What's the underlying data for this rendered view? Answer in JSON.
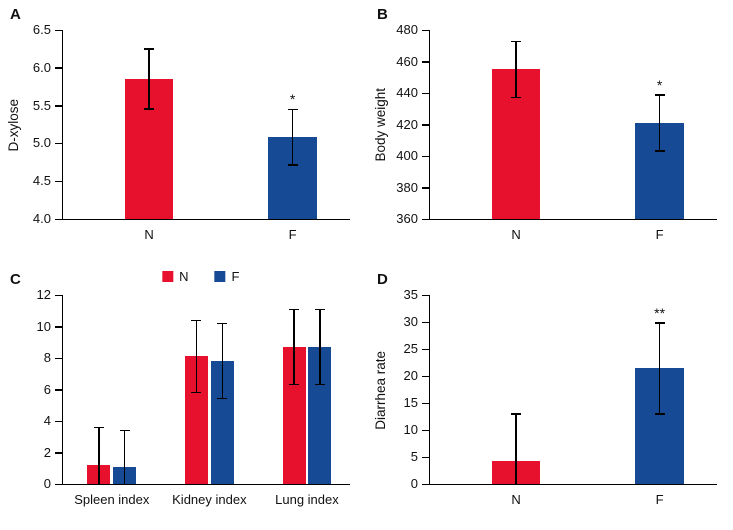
{
  "colors": {
    "red": "#e8112d",
    "blue": "#174a94",
    "axis": "#000000"
  },
  "chart_data": [
    {
      "panel": "A",
      "type": "bar",
      "ylabel": "D-xylose",
      "ylim": [
        4.0,
        6.5
      ],
      "yticks": [
        4.0,
        4.5,
        5.0,
        5.5,
        6.0,
        6.5
      ],
      "ytick_decimals": 1,
      "categories": [
        "N",
        "F"
      ],
      "legend": null,
      "groups": [
        {
          "label": "N",
          "bars": [
            {
              "series": "N",
              "value": 5.85,
              "err": 0.4,
              "color": "red",
              "sig": ""
            }
          ]
        },
        {
          "label": "F",
          "bars": [
            {
              "series": "F",
              "value": 5.08,
              "err": 0.37,
              "color": "blue",
              "sig": "*"
            }
          ]
        }
      ]
    },
    {
      "panel": "B",
      "type": "bar",
      "ylabel": "Body weight",
      "ylim": [
        360,
        480
      ],
      "yticks": [
        360,
        380,
        400,
        420,
        440,
        460,
        480
      ],
      "ytick_decimals": 0,
      "categories": [
        "N",
        "F"
      ],
      "legend": null,
      "groups": [
        {
          "label": "N",
          "bars": [
            {
              "series": "N",
              "value": 455,
              "err": 18,
              "color": "red",
              "sig": ""
            }
          ]
        },
        {
          "label": "F",
          "bars": [
            {
              "series": "F",
              "value": 421,
              "err": 18,
              "color": "blue",
              "sig": "*"
            }
          ]
        }
      ]
    },
    {
      "panel": "C",
      "type": "bar",
      "ylabel": "",
      "ylim": [
        0,
        12
      ],
      "yticks": [
        0,
        2,
        4,
        6,
        8,
        10,
        12
      ],
      "ytick_decimals": 0,
      "categories": [
        "Spleen index",
        "Kidney index",
        "Lung index"
      ],
      "legend": {
        "items": [
          {
            "label": "N",
            "color": "red"
          },
          {
            "label": "F",
            "color": "blue"
          }
        ]
      },
      "groups": [
        {
          "label": "Spleen index",
          "bars": [
            {
              "series": "N",
              "value": 1.2,
              "err": 2.4,
              "color": "red",
              "sig": ""
            },
            {
              "series": "F",
              "value": 1.1,
              "err": 2.3,
              "color": "blue",
              "sig": ""
            }
          ]
        },
        {
          "label": "Kidney index",
          "bars": [
            {
              "series": "N",
              "value": 8.1,
              "err": 2.3,
              "color": "red",
              "sig": ""
            },
            {
              "series": "F",
              "value": 7.8,
              "err": 2.4,
              "color": "blue",
              "sig": ""
            }
          ]
        },
        {
          "label": "Lung index",
          "bars": [
            {
              "series": "N",
              "value": 8.7,
              "err": 2.4,
              "color": "red",
              "sig": ""
            },
            {
              "series": "F",
              "value": 8.7,
              "err": 2.4,
              "color": "blue",
              "sig": ""
            }
          ]
        }
      ]
    },
    {
      "panel": "D",
      "type": "bar",
      "ylabel": "Diarrhea rate",
      "ylim": [
        0,
        35
      ],
      "yticks": [
        0,
        5,
        10,
        15,
        20,
        25,
        30,
        35
      ],
      "ytick_decimals": 0,
      "categories": [
        "N",
        "F"
      ],
      "legend": null,
      "groups": [
        {
          "label": "N",
          "bars": [
            {
              "series": "N",
              "value": 4.3,
              "err": 8.7,
              "color": "red",
              "sig": ""
            }
          ]
        },
        {
          "label": "F",
          "bars": [
            {
              "series": "F",
              "value": 21.4,
              "err": 8.5,
              "color": "blue",
              "sig": "**"
            }
          ]
        }
      ]
    }
  ]
}
